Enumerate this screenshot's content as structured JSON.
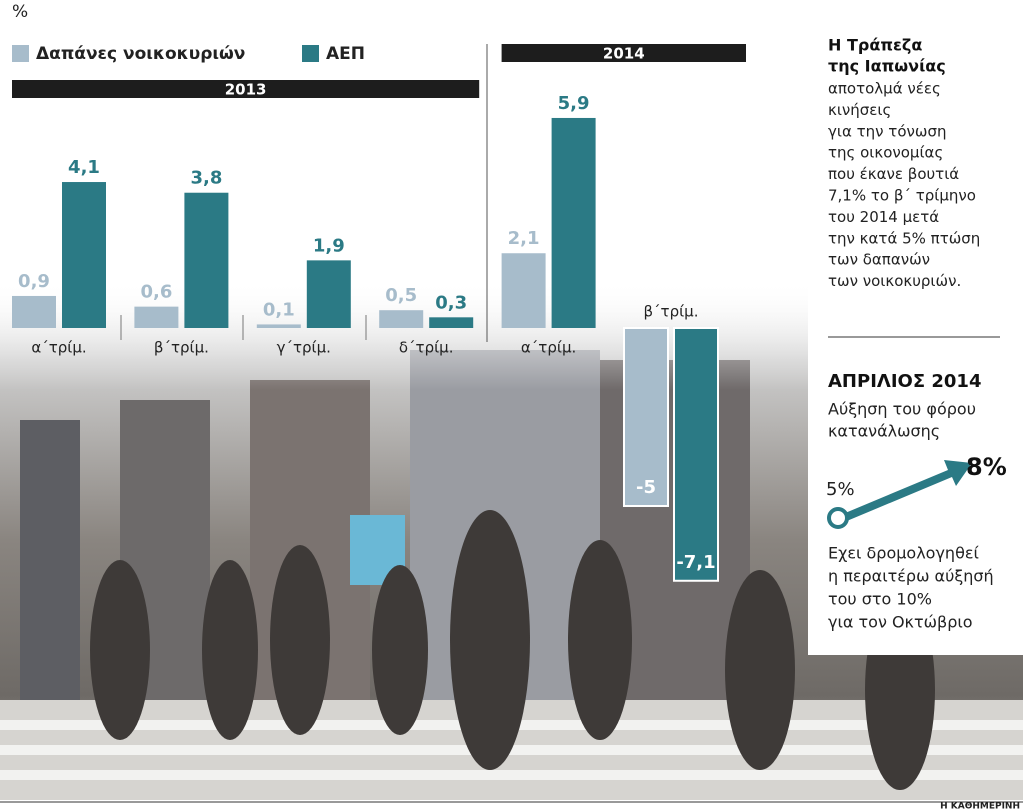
{
  "chart_data": {
    "type": "bar",
    "unit": "%",
    "groups": [
      {
        "label": "2013",
        "categories": [
          "α΄τρίμ.",
          "β΄τρίμ.",
          "γ΄τρίμ.",
          "δ΄τρίμ."
        ]
      },
      {
        "label": "2014",
        "categories": [
          "α΄τρίμ.",
          "β΄τρίμ."
        ]
      }
    ],
    "series": [
      {
        "name": "Δαπάνες νοικοκυριών",
        "color": "#a7bccb",
        "values": [
          0.9,
          0.6,
          0.1,
          0.5,
          2.1,
          -5
        ],
        "value_labels": [
          "0,9",
          "0,6",
          "0,1",
          "0,5",
          "2,1",
          "-5"
        ]
      },
      {
        "name": "ΑΕΠ",
        "color": "#2b7a85",
        "values": [
          4.1,
          3.8,
          1.9,
          0.3,
          5.9,
          -7.1
        ],
        "value_labels": [
          "4,1",
          "3,8",
          "1,9",
          "0,3",
          "5,9",
          "-7,1"
        ]
      }
    ]
  },
  "sidebar": {
    "title": [
      "Η Τράπεζα",
      "της Ιαπωνίας"
    ],
    "body": [
      "αποτολμά νέες",
      "κινήσεις",
      "για την τόνωση",
      "της οικονομίας",
      "που έκανε βουτιά",
      "7,1% το β΄ τρίμηνο",
      "του 2014 μετά",
      "την κατά 5% πτώση",
      "των δαπανών",
      "των νοικοκυριών."
    ],
    "heading": "ΑΠΡΙΛΙΟΣ 2014",
    "subheading": [
      "Αύξηση του φόρου",
      "κατανάλωσης"
    ],
    "from": "5%",
    "to": "8%",
    "note": [
      "Εχει δρομολογηθεί",
      "η περαιτέρω αύξησή",
      "του στο 10%",
      "για τον Οκτώβριο"
    ]
  },
  "footer": "Η ΚΑΘΗΜΕΡΙΝΗ"
}
